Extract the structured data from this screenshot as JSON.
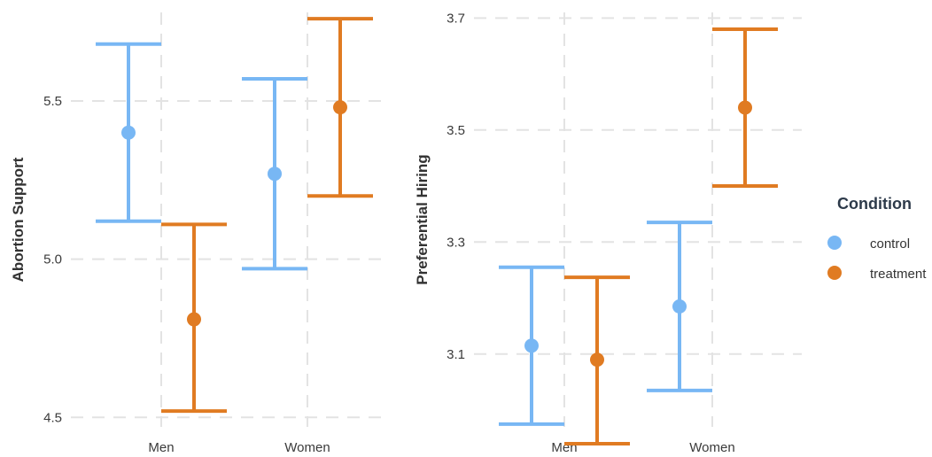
{
  "chart_data": [
    {
      "type": "errorbar",
      "title": "",
      "xlabel": "",
      "ylabel": "Abortion Support",
      "categories": [
        "Men",
        "Women"
      ],
      "ylim": [
        4.47,
        5.78
      ],
      "yticks": [
        4.5,
        5.0,
        5.5
      ],
      "ytick_labels": [
        "4.5",
        "5.0",
        "5.5"
      ],
      "grid": true,
      "series": [
        {
          "name": "control",
          "color": "#78b7f4",
          "values": [
            5.4,
            5.27
          ],
          "lower": [
            5.12,
            4.97
          ],
          "upper": [
            5.68,
            5.57
          ]
        },
        {
          "name": "treatment",
          "color": "#e07b22",
          "values": [
            4.81,
            5.48
          ],
          "lower": [
            4.52,
            5.2
          ],
          "upper": [
            5.11,
            5.76
          ]
        }
      ]
    },
    {
      "type": "errorbar",
      "title": "",
      "xlabel": "",
      "ylabel": "Preferential Hiring",
      "categories": [
        "Men",
        "Women"
      ],
      "ylim": [
        2.97,
        3.71
      ],
      "yticks": [
        3.1,
        3.3,
        3.5,
        3.7
      ],
      "ytick_labels": [
        "3.1",
        "3.3",
        "3.5",
        "3.7"
      ],
      "grid": true,
      "series": [
        {
          "name": "control",
          "color": "#78b7f4",
          "values": [
            3.115,
            3.185
          ],
          "lower": [
            2.975,
            3.035
          ],
          "upper": [
            3.255,
            3.335
          ]
        },
        {
          "name": "treatment",
          "color": "#e07b22",
          "values": [
            3.09,
            3.54
          ],
          "lower": [
            2.94,
            3.4
          ],
          "upper": [
            3.237,
            3.68
          ]
        }
      ]
    }
  ],
  "legend": {
    "title": "Condition",
    "placement": "right",
    "items": [
      {
        "label": "control",
        "color": "#78b7f4"
      },
      {
        "label": "treatment",
        "color": "#e07b22"
      }
    ]
  }
}
